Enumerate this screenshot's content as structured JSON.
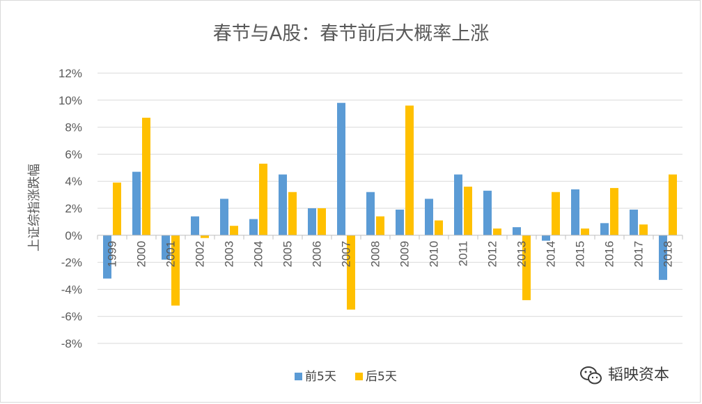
{
  "chart_data": {
    "type": "bar",
    "title": "春节与A股：春节前后大概率上涨",
    "ylabel": "上证综指涨跌幅",
    "xlabel": "",
    "categories": [
      "1999",
      "2000",
      "2001",
      "2002",
      "2003",
      "2004",
      "2005",
      "2006",
      "2007",
      "2008",
      "2009",
      "2010",
      "2011",
      "2012",
      "2013",
      "2014",
      "2015",
      "2016",
      "2017",
      "2018"
    ],
    "series": [
      {
        "name": "前5天",
        "color": "#5b9bd5",
        "values": [
          -3.2,
          4.7,
          -1.8,
          1.4,
          2.7,
          1.2,
          4.5,
          2.0,
          9.8,
          3.2,
          1.9,
          2.7,
          4.5,
          3.3,
          0.6,
          -0.4,
          3.4,
          0.9,
          1.9,
          -3.3
        ]
      },
      {
        "name": "后5天",
        "color": "#ffc000",
        "values": [
          3.9,
          8.7,
          -5.2,
          -0.2,
          0.7,
          5.3,
          3.2,
          2.0,
          -5.5,
          1.4,
          9.6,
          1.1,
          3.6,
          0.5,
          -4.8,
          3.2,
          0.5,
          3.5,
          0.8,
          4.5
        ]
      }
    ],
    "ylim": [
      -8,
      12
    ],
    "yticks": [
      -8,
      -6,
      -4,
      -2,
      0,
      2,
      4,
      6,
      8,
      10,
      12
    ],
    "ytick_format": "%",
    "grid": true,
    "legend": "bottom"
  },
  "watermark": {
    "text": "韬映资本",
    "icon": "wechat-icon"
  }
}
